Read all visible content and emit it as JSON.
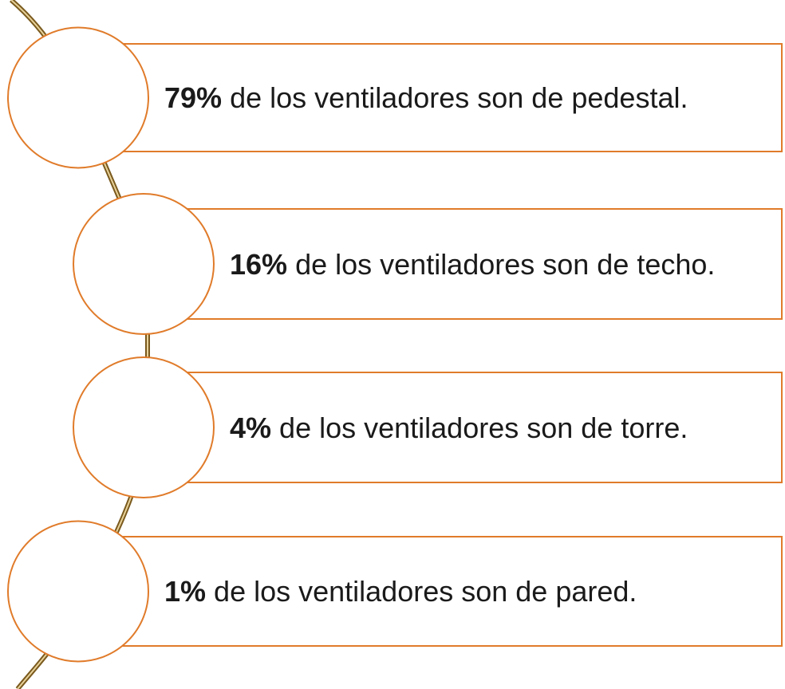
{
  "items": [
    {
      "bold": "79%",
      "text": "de los ventiladores son de pedestal."
    },
    {
      "bold": "16%",
      "text": "de los ventiladores son de techo."
    },
    {
      "bold": "4%",
      "text": "de los ventiladores son de torre."
    },
    {
      "bold": "1%",
      "text": "de los ventiladores son de pared."
    }
  ]
}
